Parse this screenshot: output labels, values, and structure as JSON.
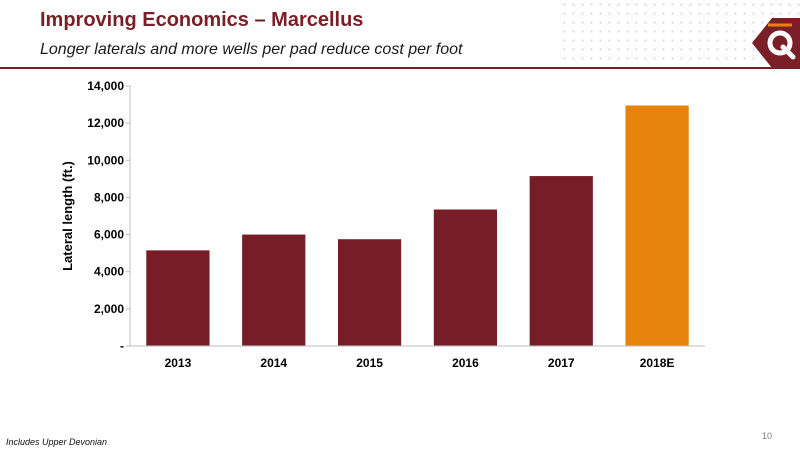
{
  "slide": {
    "title": "Improving Economics – Marcellus",
    "subtitle": "Longer laterals and more wells per pad reduce cost per foot",
    "footnote": "Includes Upper Devonian",
    "page_number": "10",
    "logo_letter": "Q"
  },
  "colors": {
    "brand": "#7a1f27",
    "bar": "#771d27",
    "highlight": "#e6830c"
  },
  "chart_data": {
    "type": "bar",
    "categories": [
      "2013",
      "2014",
      "2015",
      "2016",
      "2017",
      "2018E"
    ],
    "values": [
      5150,
      6000,
      5750,
      7350,
      9150,
      12950
    ],
    "highlight_index": 5,
    "ylabel": "Lateral length (ft.)",
    "xlabel": "",
    "ylim": [
      0,
      14000
    ],
    "yticks": [
      0,
      2000,
      4000,
      6000,
      8000,
      10000,
      12000,
      14000
    ],
    "ytick_labels": [
      "-",
      "2,000",
      "4,000",
      "6,000",
      "8,000",
      "10,000",
      "12,000",
      "14,000"
    ],
    "grid": false,
    "legend": "none"
  }
}
